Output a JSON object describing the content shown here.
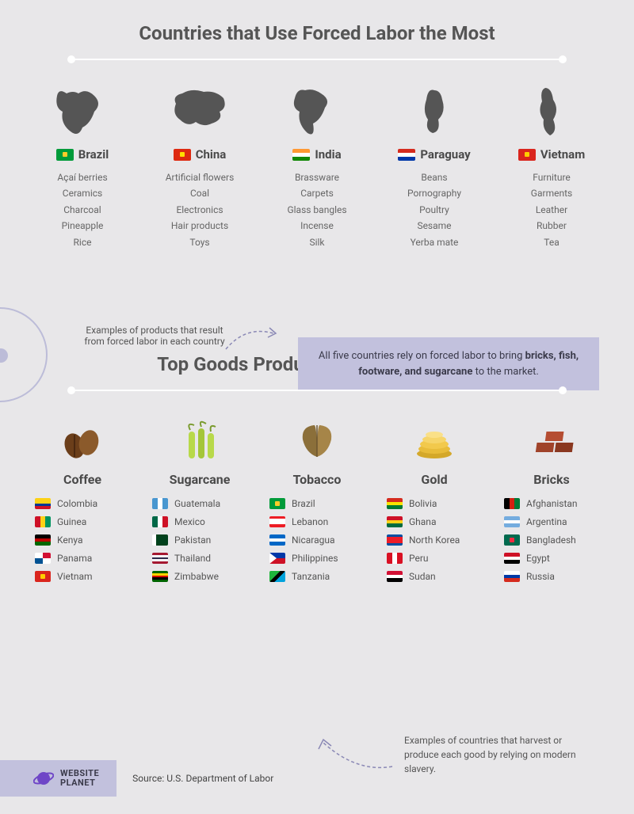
{
  "colors": {
    "bg": "#e8e7e9",
    "text": "#4a4a4a",
    "subtext": "#666666",
    "callout_bg": "#c2c1dd",
    "divider": "#ffffff",
    "accent_purple": "#6f46c7",
    "map_silhouette": "#555555"
  },
  "typography": {
    "title_size_pt": 24,
    "body_size_pt": 12,
    "label_size_pt": 15,
    "good_name_pt": 16
  },
  "section1": {
    "title": "Countries that Use Forced Labor the Most",
    "countries": [
      {
        "name": "Brazil",
        "products": [
          "Açaí berries",
          "Ceramics",
          "Charcoal",
          "Pineapple",
          "Rice"
        ]
      },
      {
        "name": "China",
        "products": [
          "Artificial flowers",
          "Coal",
          "Electronics",
          "Hair products",
          "Toys"
        ]
      },
      {
        "name": "India",
        "products": [
          "Brassware",
          "Carpets",
          "Glass bangles",
          "Incense",
          "Silk"
        ]
      },
      {
        "name": "Paraguay",
        "products": [
          "Beans",
          "Pornography",
          "Poultry",
          "Sesame",
          "Yerba mate"
        ]
      },
      {
        "name": "Vietnam",
        "products": [
          "Furniture",
          "Garments",
          "Leather",
          "Rubber",
          "Tea"
        ]
      }
    ],
    "annotation": "Examples of products that result from forced labor in each country",
    "callout_pre": "All five countries rely on forced labor to bring ",
    "callout_bold": "bricks, fish, footware, and sugarcane",
    "callout_post": " to the market."
  },
  "section2": {
    "title": "Top Goods Produced by Forced Labor",
    "goods": [
      {
        "name": "Coffee",
        "countries": [
          "Colombia",
          "Guinea",
          "Kenya",
          "Panama",
          "Vietnam"
        ]
      },
      {
        "name": "Sugarcane",
        "countries": [
          "Guatemala",
          "Mexico",
          "Pakistan",
          "Thailand",
          "Zimbabwe"
        ]
      },
      {
        "name": "Tobacco",
        "countries": [
          "Brazil",
          "Lebanon",
          "Nicaragua",
          "Philippines",
          "Tanzania"
        ]
      },
      {
        "name": "Gold",
        "countries": [
          "Bolivia",
          "Ghana",
          "North Korea",
          "Peru",
          "Sudan"
        ]
      },
      {
        "name": "Bricks",
        "countries": [
          "Afghanistan",
          "Argentina",
          "Bangladesh",
          "Egypt",
          "Russia"
        ]
      }
    ],
    "annotation": "Examples of countries that  harvest or produce each good by relying on modern slavery."
  },
  "footer": {
    "logo_line1": "WEBSITE",
    "logo_line2": "PLANET",
    "source": "Source: U.S. Department of Labor"
  },
  "flags": {
    "Brazil": {
      "type": "solid",
      "bg": "#009b3a",
      "dot": "#ffcc29"
    },
    "China": {
      "type": "solid",
      "bg": "#de2910",
      "dot": "#ffde00"
    },
    "India": {
      "type": "h3",
      "c": [
        "#ff9933",
        "#ffffff",
        "#138808"
      ]
    },
    "Paraguay": {
      "type": "h3",
      "c": [
        "#d52b1e",
        "#ffffff",
        "#0038a8"
      ]
    },
    "Vietnam": {
      "type": "solid",
      "bg": "#da251d",
      "dot": "#ffcd00"
    },
    "Colombia": {
      "type": "h3w",
      "c": [
        "#fcd116",
        "#003893",
        "#ce1126"
      ],
      "w": [
        2,
        1,
        1
      ]
    },
    "Guinea": {
      "type": "v3",
      "c": [
        "#ce1126",
        "#fcd116",
        "#009460"
      ]
    },
    "Kenya": {
      "type": "h3",
      "c": [
        "#000000",
        "#bb0000",
        "#006600"
      ]
    },
    "Panama": {
      "type": "quad",
      "c": [
        "#ffffff",
        "#d21034",
        "#005293",
        "#ffffff"
      ]
    },
    "Guatemala": {
      "type": "v3",
      "c": [
        "#4997d0",
        "#ffffff",
        "#4997d0"
      ]
    },
    "Mexico": {
      "type": "v3",
      "c": [
        "#006847",
        "#ffffff",
        "#ce1126"
      ]
    },
    "Pakistan": {
      "type": "pk",
      "c": [
        "#ffffff",
        "#01411c"
      ]
    },
    "Thailand": {
      "type": "h5",
      "c": [
        "#a51931",
        "#f4f5f8",
        "#2d2a4a",
        "#f4f5f8",
        "#a51931"
      ]
    },
    "Zimbabwe": {
      "type": "h5",
      "c": [
        "#006400",
        "#ffd200",
        "#d40000",
        "#000000",
        "#006400"
      ]
    },
    "Lebanon": {
      "type": "h3w",
      "c": [
        "#ed1c24",
        "#ffffff",
        "#ed1c24"
      ],
      "w": [
        1,
        2,
        1
      ]
    },
    "Nicaragua": {
      "type": "h3",
      "c": [
        "#0067c6",
        "#ffffff",
        "#0067c6"
      ]
    },
    "Philippines": {
      "type": "h2tri",
      "c": [
        "#0038a8",
        "#ce1126",
        "#ffffff"
      ]
    },
    "Tanzania": {
      "type": "diag",
      "c": [
        "#1eb53a",
        "#00a3dd",
        "#000000"
      ]
    },
    "Bolivia": {
      "type": "h3",
      "c": [
        "#d52b1e",
        "#f9e300",
        "#007934"
      ]
    },
    "Ghana": {
      "type": "h3",
      "c": [
        "#ce1126",
        "#fcd116",
        "#006b3f"
      ]
    },
    "North Korea": {
      "type": "h3w",
      "c": [
        "#024fa2",
        "#ed1c27",
        "#024fa2"
      ],
      "w": [
        1,
        3,
        1
      ]
    },
    "Peru": {
      "type": "v3",
      "c": [
        "#d91023",
        "#ffffff",
        "#d91023"
      ]
    },
    "Sudan": {
      "type": "h3",
      "c": [
        "#d21034",
        "#ffffff",
        "#000000"
      ]
    },
    "Afghanistan": {
      "type": "v3",
      "c": [
        "#000000",
        "#d32011",
        "#007a36"
      ]
    },
    "Argentina": {
      "type": "h3",
      "c": [
        "#74acdf",
        "#ffffff",
        "#74acdf"
      ]
    },
    "Bangladesh": {
      "type": "solid",
      "bg": "#006a4e",
      "dot": "#f42a41"
    },
    "Egypt": {
      "type": "h3",
      "c": [
        "#ce1126",
        "#ffffff",
        "#000000"
      ]
    },
    "Russia": {
      "type": "h3",
      "c": [
        "#ffffff",
        "#0039a6",
        "#d52b1e"
      ]
    }
  }
}
